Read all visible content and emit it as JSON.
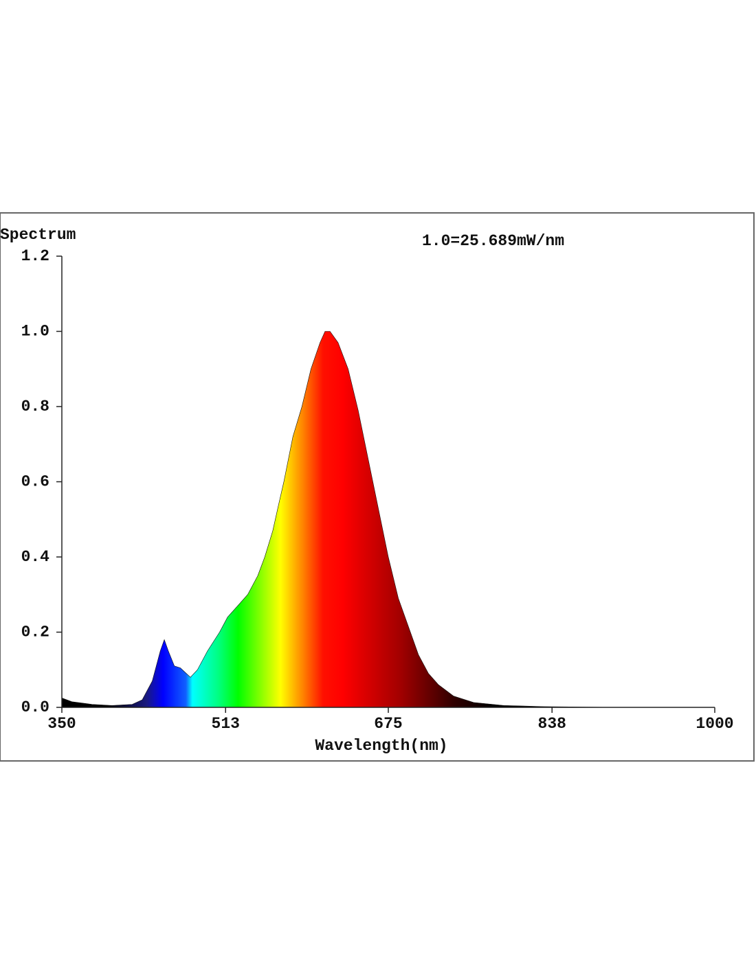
{
  "chart_data": {
    "type": "area",
    "y_label": "Spectrum",
    "x_label": "Wavelength(nm)",
    "annotation": "1.0=25.689mW/nm",
    "x": [
      350,
      360,
      380,
      400,
      420,
      430,
      440,
      448,
      452,
      456,
      462,
      468,
      474,
      478,
      485,
      495,
      507,
      515,
      525,
      535,
      545,
      552,
      560,
      565,
      571,
      580,
      589,
      598,
      607,
      612,
      617,
      625,
      635,
      645,
      655,
      665,
      675,
      685,
      697,
      705,
      715,
      725,
      740,
      760,
      790,
      830,
      900,
      1000
    ],
    "y": [
      0.025,
      0.015,
      0.008,
      0.005,
      0.008,
      0.02,
      0.07,
      0.15,
      0.18,
      0.15,
      0.11,
      0.105,
      0.09,
      0.08,
      0.1,
      0.15,
      0.2,
      0.24,
      0.27,
      0.3,
      0.35,
      0.4,
      0.47,
      0.53,
      0.6,
      0.72,
      0.8,
      0.9,
      0.97,
      1.0,
      1.0,
      0.97,
      0.9,
      0.79,
      0.66,
      0.53,
      0.4,
      0.29,
      0.2,
      0.14,
      0.09,
      0.06,
      0.03,
      0.013,
      0.005,
      0.002,
      0.0,
      0.0
    ],
    "xlim": [
      350,
      1000
    ],
    "ylim": [
      0,
      1.2
    ],
    "xticks": [
      350,
      513,
      675,
      838,
      1000
    ],
    "yticks": [
      {
        "value": 0,
        "label": "0.0"
      },
      0.2,
      0.4,
      0.6,
      0.8,
      {
        "value": 1,
        "label": "1.0"
      },
      1.2
    ]
  }
}
